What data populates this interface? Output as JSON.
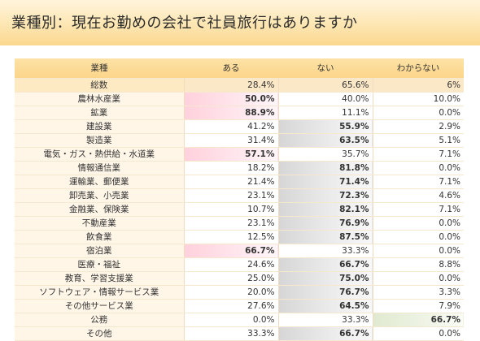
{
  "title": "業種別：現在お勤めの会社で社員旅行はありますか",
  "table": {
    "headers": [
      "業種",
      "ある",
      "ない",
      "わからない"
    ],
    "total": {
      "label": "総数",
      "values": [
        "28.4%",
        "65.6%",
        "6%"
      ]
    },
    "rows": [
      {
        "label": "農林水産業",
        "values": [
          "50.0%",
          "40.0%",
          "10.0%"
        ],
        "max": 0
      },
      {
        "label": "鉱業",
        "values": [
          "88.9%",
          "11.1%",
          "0.0%"
        ],
        "max": 0
      },
      {
        "label": "建設業",
        "values": [
          "41.2%",
          "55.9%",
          "2.9%"
        ],
        "max": 1
      },
      {
        "label": "製造業",
        "values": [
          "31.4%",
          "63.5%",
          "5.1%"
        ],
        "max": 1
      },
      {
        "label": "電気・ガス・熱供給・水道業",
        "values": [
          "57.1%",
          "35.7%",
          "7.1%"
        ],
        "max": 0
      },
      {
        "label": "情報通信業",
        "values": [
          "18.2%",
          "81.8%",
          "0.0%"
        ],
        "max": 1
      },
      {
        "label": "運輸業、郵便業",
        "values": [
          "21.4%",
          "71.4%",
          "7.1%"
        ],
        "max": 1
      },
      {
        "label": "卸売業、小売業",
        "values": [
          "23.1%",
          "72.3%",
          "4.6%"
        ],
        "max": 1
      },
      {
        "label": "金融業、保険業",
        "values": [
          "10.7%",
          "82.1%",
          "7.1%"
        ],
        "max": 1
      },
      {
        "label": "不動産業",
        "values": [
          "23.1%",
          "76.9%",
          "0.0%"
        ],
        "max": 1
      },
      {
        "label": "飲食業",
        "values": [
          "12.5%",
          "87.5%",
          "0.0%"
        ],
        "max": 1
      },
      {
        "label": "宿泊業",
        "values": [
          "66.7%",
          "33.3%",
          "0.0%"
        ],
        "max": 0
      },
      {
        "label": "医療・福祉",
        "values": [
          "24.6%",
          "66.7%",
          "8.8%"
        ],
        "max": 1
      },
      {
        "label": "教育、学習支援業",
        "values": [
          "25.0%",
          "75.0%",
          "0.0%"
        ],
        "max": 1
      },
      {
        "label": "ソフトウェア・情報サービス業",
        "values": [
          "20.0%",
          "76.7%",
          "3.3%"
        ],
        "max": 1
      },
      {
        "label": "その他サービス業",
        "values": [
          "27.6%",
          "64.5%",
          "7.9%"
        ],
        "max": 1
      },
      {
        "label": "公務",
        "values": [
          "0.0%",
          "33.3%",
          "66.7%"
        ],
        "max": 2
      },
      {
        "label": "その他",
        "values": [
          "33.3%",
          "66.7%",
          "0.0%"
        ],
        "max": 1
      }
    ]
  }
}
